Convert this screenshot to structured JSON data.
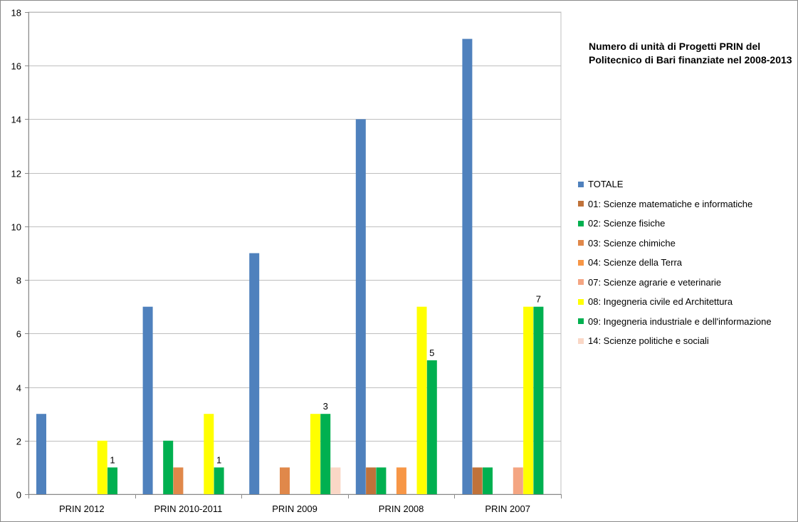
{
  "chart_data": {
    "type": "bar",
    "title": "Numero di unità di Progetti PRIN del Politecnico di Bari finanziate nel 2008-2013",
    "categories": [
      "PRIN 2012",
      "PRIN 2010-2011",
      "PRIN 2009",
      "PRIN 2008",
      "PRIN 2007"
    ],
    "ylim": [
      0,
      18
    ],
    "yticks": [
      0,
      2,
      4,
      6,
      8,
      10,
      12,
      14,
      16,
      18
    ],
    "grid": true,
    "legend_position": "right",
    "series": [
      {
        "name": "TOTALE",
        "color": "#4F81BD",
        "values": [
          3,
          7,
          9,
          14,
          17
        ],
        "labels": [
          "",
          "",
          "",
          "",
          ""
        ]
      },
      {
        "name": "01: Scienze matematiche e informatiche",
        "color": "#C0723A",
        "values": [
          0,
          0,
          0,
          1,
          1
        ],
        "labels": [
          "",
          "",
          "",
          "",
          ""
        ]
      },
      {
        "name": "02: Scienze fisiche",
        "color": "#00B050",
        "values": [
          0,
          2,
          0,
          1,
          1
        ],
        "labels": [
          "",
          "",
          "",
          "",
          ""
        ]
      },
      {
        "name": "03: Scienze chimiche",
        "color": "#E0884A",
        "values": [
          0,
          1,
          1,
          0,
          0
        ],
        "labels": [
          "",
          "",
          "",
          "",
          ""
        ]
      },
      {
        "name": "04: Scienze della Terra",
        "color": "#F79646",
        "values": [
          0,
          0,
          0,
          1,
          0
        ],
        "labels": [
          "",
          "",
          "",
          "",
          ""
        ]
      },
      {
        "name": "07: Scienze agrarie e veterinarie",
        "color": "#F4A582",
        "values": [
          0,
          0,
          0,
          0,
          1
        ],
        "labels": [
          "",
          "",
          "",
          "",
          ""
        ]
      },
      {
        "name": "08: Ingegneria civile ed Architettura",
        "color": "#FFFF00",
        "values": [
          2,
          3,
          3,
          7,
          7
        ],
        "labels": [
          "",
          "",
          "",
          "",
          ""
        ]
      },
      {
        "name": "09: Ingegneria industriale e dell'informazione",
        "color": "#00B050",
        "values": [
          1,
          1,
          3,
          5,
          7
        ],
        "labels": [
          "1",
          "1",
          "3",
          "5",
          "7"
        ]
      },
      {
        "name": "14: Scienze politiche e sociali",
        "color": "#FAD7C6",
        "values": [
          0,
          0,
          1,
          0,
          0
        ],
        "labels": [
          "",
          "",
          "",
          "",
          ""
        ]
      }
    ]
  }
}
